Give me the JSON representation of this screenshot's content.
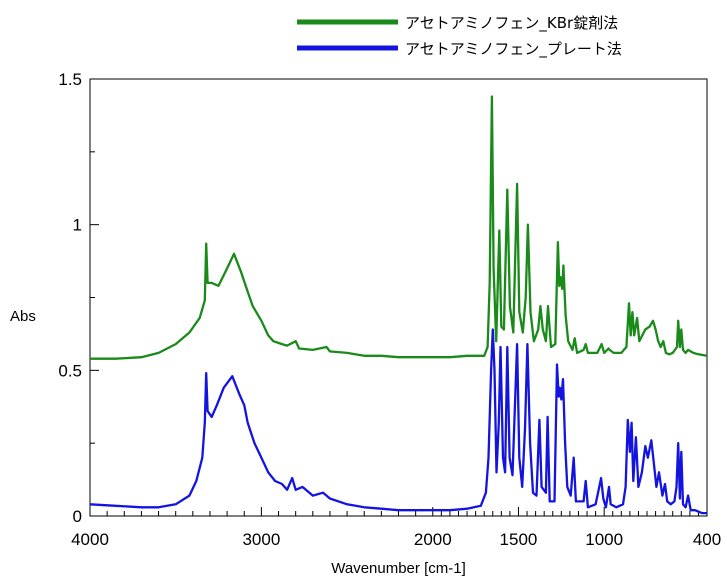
{
  "chart_data": {
    "type": "line",
    "xlabel": "Wavenumber [cm-1]",
    "ylabel": "Abs",
    "xlim": [
      4000,
      400
    ],
    "ylim": [
      0,
      1.5
    ],
    "x_reversed": true,
    "x_ticks": [
      4000,
      3000,
      2000,
      1500,
      1000,
      400
    ],
    "x_tick_labels": [
      "4000",
      "3000",
      "2000",
      "1500",
      "1000",
      "400"
    ],
    "y_ticks": [
      0,
      0.5,
      1,
      1.5
    ],
    "y_tick_labels": [
      "0",
      "0.5",
      "1",
      "1.5"
    ],
    "grid": false,
    "legend_position": "top",
    "series": [
      {
        "name": "アセトアミノフェン_KBr錠剤法",
        "color": "#1a8a1a",
        "points": [
          [
            4000,
            0.54
          ],
          [
            3850,
            0.54
          ],
          [
            3700,
            0.545
          ],
          [
            3600,
            0.56
          ],
          [
            3500,
            0.59
          ],
          [
            3420,
            0.63
          ],
          [
            3360,
            0.68
          ],
          [
            3330,
            0.74
          ],
          [
            3322,
            0.935
          ],
          [
            3314,
            0.8
          ],
          [
            3290,
            0.8
          ],
          [
            3250,
            0.79
          ],
          [
            3200,
            0.85
          ],
          [
            3160,
            0.9
          ],
          [
            3120,
            0.84
          ],
          [
            3080,
            0.77
          ],
          [
            3050,
            0.72
          ],
          [
            3000,
            0.67
          ],
          [
            2960,
            0.62
          ],
          [
            2930,
            0.6
          ],
          [
            2880,
            0.59
          ],
          [
            2850,
            0.585
          ],
          [
            2800,
            0.6
          ],
          [
            2780,
            0.575
          ],
          [
            2700,
            0.57
          ],
          [
            2620,
            0.58
          ],
          [
            2600,
            0.565
          ],
          [
            2500,
            0.56
          ],
          [
            2400,
            0.55
          ],
          [
            2300,
            0.55
          ],
          [
            2200,
            0.545
          ],
          [
            2000,
            0.545
          ],
          [
            1900,
            0.545
          ],
          [
            1800,
            0.55
          ],
          [
            1700,
            0.55
          ],
          [
            1680,
            0.58
          ],
          [
            1668,
            0.8
          ],
          [
            1655,
            1.44
          ],
          [
            1645,
            0.85
          ],
          [
            1630,
            0.6
          ],
          [
            1612,
            0.98
          ],
          [
            1600,
            0.65
          ],
          [
            1585,
            0.64
          ],
          [
            1565,
            1.12
          ],
          [
            1550,
            0.72
          ],
          [
            1530,
            0.63
          ],
          [
            1508,
            1.14
          ],
          [
            1495,
            0.7
          ],
          [
            1475,
            0.63
          ],
          [
            1458,
            0.75
          ],
          [
            1445,
            1.0
          ],
          [
            1430,
            0.7
          ],
          [
            1410,
            0.6
          ],
          [
            1385,
            0.64
          ],
          [
            1372,
            0.72
          ],
          [
            1358,
            0.64
          ],
          [
            1340,
            0.6
          ],
          [
            1328,
            0.72
          ],
          [
            1310,
            0.58
          ],
          [
            1285,
            0.59
          ],
          [
            1270,
            0.94
          ],
          [
            1262,
            0.79
          ],
          [
            1255,
            0.82
          ],
          [
            1245,
            0.78
          ],
          [
            1238,
            0.86
          ],
          [
            1225,
            0.69
          ],
          [
            1210,
            0.6
          ],
          [
            1185,
            0.57
          ],
          [
            1172,
            0.61
          ],
          [
            1158,
            0.56
          ],
          [
            1120,
            0.57
          ],
          [
            1108,
            0.59
          ],
          [
            1095,
            0.56
          ],
          [
            1040,
            0.56
          ],
          [
            1015,
            0.59
          ],
          [
            1000,
            0.56
          ],
          [
            975,
            0.575
          ],
          [
            968,
            0.57
          ],
          [
            945,
            0.56
          ],
          [
            900,
            0.56
          ],
          [
            870,
            0.58
          ],
          [
            855,
            0.73
          ],
          [
            845,
            0.62
          ],
          [
            835,
            0.7
          ],
          [
            825,
            0.62
          ],
          [
            808,
            0.68
          ],
          [
            795,
            0.6
          ],
          [
            760,
            0.64
          ],
          [
            735,
            0.65
          ],
          [
            715,
            0.67
          ],
          [
            700,
            0.64
          ],
          [
            685,
            0.6
          ],
          [
            670,
            0.58
          ],
          [
            655,
            0.6
          ],
          [
            640,
            0.56
          ],
          [
            620,
            0.555
          ],
          [
            600,
            0.56
          ],
          [
            575,
            0.58
          ],
          [
            568,
            0.67
          ],
          [
            558,
            0.58
          ],
          [
            550,
            0.64
          ],
          [
            540,
            0.57
          ],
          [
            525,
            0.56
          ],
          [
            510,
            0.57
          ],
          [
            480,
            0.56
          ],
          [
            450,
            0.555
          ],
          [
            400,
            0.55
          ]
        ]
      },
      {
        "name": "アセトアミノフェン_プレート法",
        "color": "#1414e0",
        "points": [
          [
            4000,
            0.04
          ],
          [
            3850,
            0.035
          ],
          [
            3700,
            0.03
          ],
          [
            3600,
            0.03
          ],
          [
            3500,
            0.04
          ],
          [
            3420,
            0.07
          ],
          [
            3380,
            0.12
          ],
          [
            3345,
            0.2
          ],
          [
            3330,
            0.32
          ],
          [
            3322,
            0.49
          ],
          [
            3314,
            0.36
          ],
          [
            3290,
            0.34
          ],
          [
            3260,
            0.38
          ],
          [
            3220,
            0.44
          ],
          [
            3170,
            0.48
          ],
          [
            3130,
            0.42
          ],
          [
            3100,
            0.38
          ],
          [
            3080,
            0.32
          ],
          [
            3040,
            0.25
          ],
          [
            3000,
            0.2
          ],
          [
            2960,
            0.15
          ],
          [
            2920,
            0.12
          ],
          [
            2880,
            0.11
          ],
          [
            2850,
            0.09
          ],
          [
            2820,
            0.13
          ],
          [
            2800,
            0.09
          ],
          [
            2760,
            0.1
          ],
          [
            2700,
            0.07
          ],
          [
            2640,
            0.08
          ],
          [
            2600,
            0.06
          ],
          [
            2500,
            0.04
          ],
          [
            2400,
            0.03
          ],
          [
            2300,
            0.025
          ],
          [
            2200,
            0.02
          ],
          [
            2000,
            0.02
          ],
          [
            1900,
            0.02
          ],
          [
            1800,
            0.025
          ],
          [
            1720,
            0.035
          ],
          [
            1690,
            0.08
          ],
          [
            1675,
            0.2
          ],
          [
            1660,
            0.5
          ],
          [
            1650,
            0.64
          ],
          [
            1640,
            0.5
          ],
          [
            1628,
            0.15
          ],
          [
            1615,
            0.32
          ],
          [
            1605,
            0.58
          ],
          [
            1590,
            0.2
          ],
          [
            1578,
            0.15
          ],
          [
            1565,
            0.58
          ],
          [
            1552,
            0.2
          ],
          [
            1535,
            0.14
          ],
          [
            1508,
            0.59
          ],
          [
            1495,
            0.2
          ],
          [
            1478,
            0.1
          ],
          [
            1462,
            0.3
          ],
          [
            1448,
            0.59
          ],
          [
            1432,
            0.25
          ],
          [
            1415,
            0.08
          ],
          [
            1395,
            0.07
          ],
          [
            1378,
            0.33
          ],
          [
            1365,
            0.1
          ],
          [
            1340,
            0.08
          ],
          [
            1330,
            0.34
          ],
          [
            1318,
            0.05
          ],
          [
            1290,
            0.05
          ],
          [
            1275,
            0.52
          ],
          [
            1265,
            0.41
          ],
          [
            1258,
            0.44
          ],
          [
            1250,
            0.4
          ],
          [
            1240,
            0.47
          ],
          [
            1228,
            0.25
          ],
          [
            1215,
            0.1
          ],
          [
            1195,
            0.07
          ],
          [
            1178,
            0.2
          ],
          [
            1165,
            0.05
          ],
          [
            1120,
            0.05
          ],
          [
            1108,
            0.12
          ],
          [
            1095,
            0.03
          ],
          [
            1050,
            0.04
          ],
          [
            1018,
            0.13
          ],
          [
            1005,
            0.06
          ],
          [
            990,
            0.03
          ],
          [
            972,
            0.1
          ],
          [
            962,
            0.04
          ],
          [
            930,
            0.03
          ],
          [
            890,
            0.04
          ],
          [
            875,
            0.1
          ],
          [
            862,
            0.33
          ],
          [
            850,
            0.22
          ],
          [
            840,
            0.32
          ],
          [
            830,
            0.12
          ],
          [
            815,
            0.27
          ],
          [
            800,
            0.1
          ],
          [
            780,
            0.15
          ],
          [
            760,
            0.24
          ],
          [
            745,
            0.2
          ],
          [
            725,
            0.26
          ],
          [
            710,
            0.18
          ],
          [
            695,
            0.1
          ],
          [
            680,
            0.15
          ],
          [
            660,
            0.07
          ],
          [
            645,
            0.11
          ],
          [
            632,
            0.05
          ],
          [
            612,
            0.04
          ],
          [
            590,
            0.05
          ],
          [
            578,
            0.1
          ],
          [
            568,
            0.25
          ],
          [
            558,
            0.06
          ],
          [
            550,
            0.22
          ],
          [
            540,
            0.04
          ],
          [
            525,
            0.03
          ],
          [
            510,
            0.07
          ],
          [
            495,
            0.02
          ],
          [
            470,
            0.02
          ],
          [
            430,
            0.01
          ],
          [
            400,
            0.01
          ]
        ]
      }
    ]
  }
}
